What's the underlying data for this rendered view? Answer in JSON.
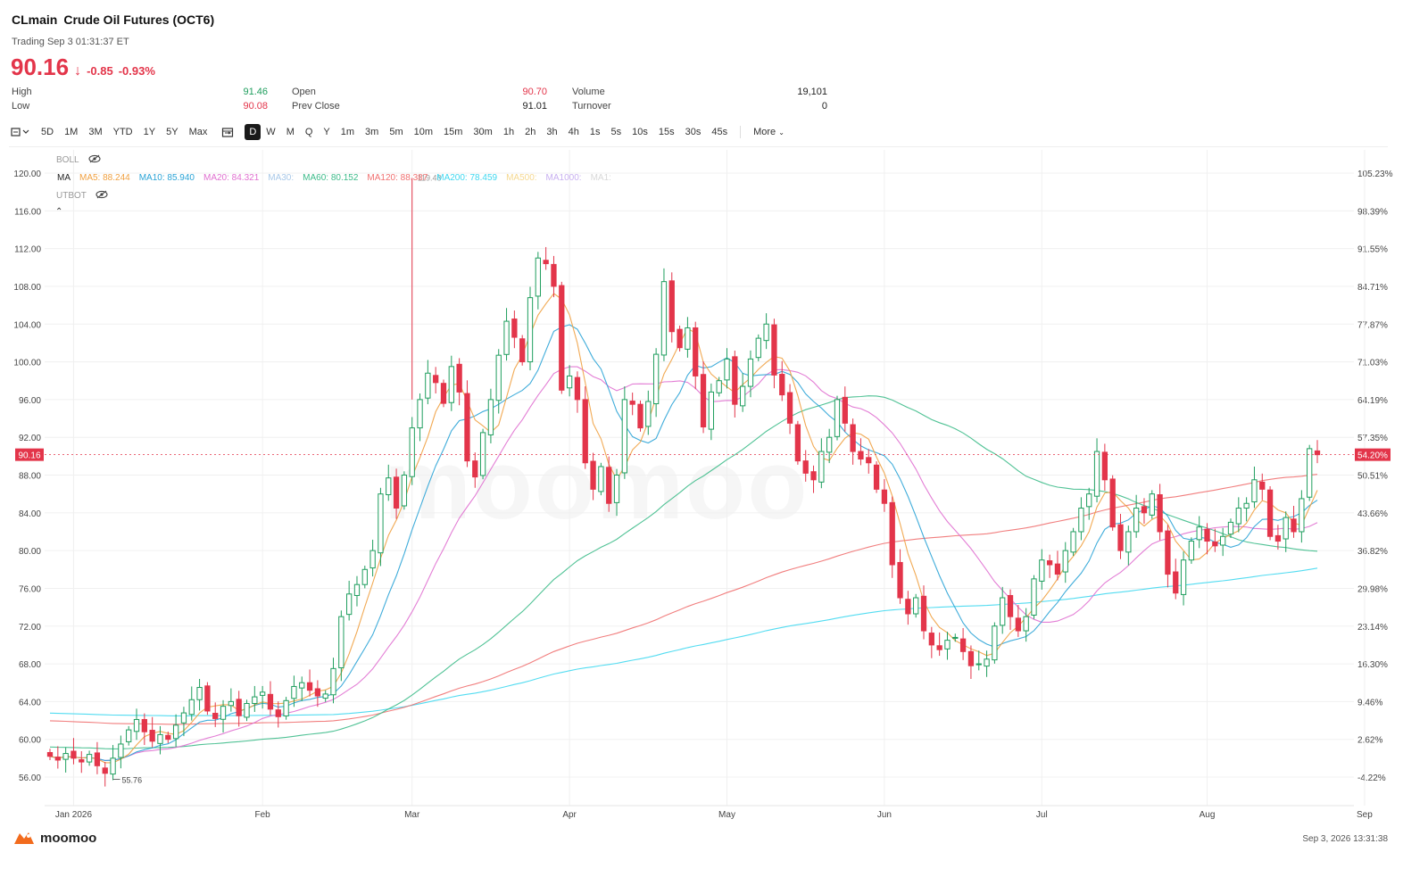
{
  "header": {
    "symbol": "CLmain",
    "name": "Crude Oil Futures (OCT6)",
    "trading_status": "Trading Sep 3 01:31:37 ET",
    "price": "90.16",
    "change": "-0.85",
    "change_pct": "-0.93%"
  },
  "stats": {
    "high_label": "High",
    "high": "91.46",
    "low_label": "Low",
    "low": "90.08",
    "open_label": "Open",
    "open": "90.70",
    "prev_close_label": "Prev Close",
    "prev_close": "91.01",
    "volume_label": "Volume",
    "volume": "19,101",
    "turnover_label": "Turnover",
    "turnover": "0"
  },
  "toolbar": {
    "ranges": [
      "5D",
      "1M",
      "3M",
      "YTD",
      "1Y",
      "5Y",
      "Max"
    ],
    "periods": [
      "D",
      "W",
      "M",
      "Q",
      "Y",
      "1m",
      "3m",
      "5m",
      "10m",
      "15m",
      "30m",
      "1h",
      "2h",
      "3h",
      "4h",
      "1s",
      "5s",
      "10s",
      "15s",
      "30s",
      "45s"
    ],
    "active_period": "D",
    "more_label": "More"
  },
  "indicators": {
    "boll_label": "BOLL",
    "ma_label": "MA",
    "utbot_label": "UTBOT",
    "ma_values": [
      {
        "text": "MA5: 88.244",
        "color": "#f0a040"
      },
      {
        "text": "MA10: 85.940",
        "color": "#2aa3d6"
      },
      {
        "text": "MA20: 84.321",
        "color": "#e070d0"
      },
      {
        "text": "MA30:",
        "color": "#a8c8e8"
      },
      {
        "text": "MA60: 80.152",
        "color": "#3dbb8a"
      },
      {
        "text": "MA120: 88.387",
        "color": "#f07070"
      },
      {
        "text": "MA200: 78.459",
        "color": "#40d8f0"
      },
      {
        "text": "MA500:",
        "color": "#f5d890"
      },
      {
        "text": "MA1000:",
        "color": "#c8b0f0"
      },
      {
        "text": "MA1:",
        "color": "#d8d8d8"
      }
    ]
  },
  "chart_data": {
    "type": "candlestick",
    "y_axis_left": [
      "120.00",
      "116.00",
      "112.00",
      "108.00",
      "104.00",
      "100.00",
      "96.00",
      "92.00",
      "88.00",
      "84.00",
      "80.00",
      "76.00",
      "72.00",
      "68.00",
      "64.00",
      "60.00",
      "56.00"
    ],
    "y_axis_right": [
      "105.23%",
      "98.39%",
      "91.55%",
      "84.71%",
      "77.87%",
      "71.03%",
      "64.19%",
      "57.35%",
      "50.51%",
      "43.66%",
      "36.82%",
      "29.98%",
      "23.14%",
      "16.30%",
      "9.46%",
      "2.62%",
      "-4.22%"
    ],
    "x_labels": [
      "Jan 2026",
      "Feb",
      "Mar",
      "Apr",
      "May",
      "Jun",
      "Jul",
      "Aug",
      "Sep"
    ],
    "current_price_tag": "90.16",
    "current_pct_tag": "54.20%",
    "annotation_high": "119.48",
    "annotation_low": "55.76",
    "ylim": [
      56,
      120
    ],
    "close": [
      58.2,
      57.8,
      58.5,
      58.0,
      57.6,
      58.4,
      57.2,
      56.4,
      58.0,
      59.5,
      61.0,
      62.1,
      60.8,
      59.8,
      60.5,
      60.0,
      61.5,
      62.8,
      64.2,
      65.5,
      63.0,
      62.2,
      63.5,
      64.0,
      62.5,
      63.8,
      64.5,
      65.0,
      63.2,
      62.4,
      64.1,
      65.6,
      66.0,
      65.2,
      64.6,
      64.8,
      67.5,
      73.0,
      75.4,
      76.4,
      78.0,
      80.0,
      86.0,
      87.7,
      84.5,
      88.0,
      93.0,
      96.0,
      98.8,
      97.8,
      95.6,
      99.5,
      96.8,
      89.5,
      87.8,
      92.5,
      96.0,
      100.7,
      104.3,
      102.6,
      100.0,
      106.8,
      111.0,
      110.4,
      108.0,
      97.0,
      98.5,
      96.0,
      89.3,
      86.5,
      88.9,
      85.0,
      88.0,
      96.0,
      95.5,
      93.0,
      95.8,
      100.8,
      108.5,
      103.2,
      101.5,
      103.6,
      98.5,
      93.1,
      96.8,
      98.0,
      100.3,
      95.5,
      97.4,
      100.3,
      102.5,
      104.0,
      98.6,
      96.5,
      93.5,
      89.5,
      88.2,
      87.5,
      90.5,
      92.0,
      96.0,
      93.5,
      90.5,
      89.7,
      89.3,
      86.5,
      85.0,
      78.5,
      75.0,
      73.3,
      75.0,
      71.5,
      70.0,
      69.5,
      70.5,
      70.8,
      69.3,
      67.8,
      68.0,
      68.5,
      72.0,
      75.0,
      73.0,
      71.5,
      73.0,
      77.0,
      79.0,
      78.5,
      77.5,
      80.0,
      82.0,
      84.5,
      86.0,
      90.5,
      87.5,
      82.5,
      80.0,
      82.0,
      84.5,
      84.0,
      86.0,
      82.0,
      77.5,
      75.5,
      79.0,
      81.0,
      82.5,
      81.0,
      80.5,
      81.5,
      83.0,
      84.5,
      85.0,
      87.5,
      86.5,
      81.5,
      81.0,
      83.5,
      82.0,
      85.5,
      90.8,
      90.16
    ],
    "series": [
      {
        "name": "MA5",
        "color": "#f0a040"
      },
      {
        "name": "MA10",
        "color": "#2aa3d6"
      },
      {
        "name": "MA20",
        "color": "#e070d0"
      },
      {
        "name": "MA60",
        "color": "#3dbb8a"
      },
      {
        "name": "MA120",
        "color": "#f07070"
      },
      {
        "name": "MA200",
        "color": "#40d8f0"
      }
    ],
    "colors": {
      "up": "#1f9e5e",
      "down": "#e3354a"
    }
  },
  "footer": {
    "brand": "moomoo",
    "timestamp": "Sep 3, 2026 13:31:38"
  }
}
